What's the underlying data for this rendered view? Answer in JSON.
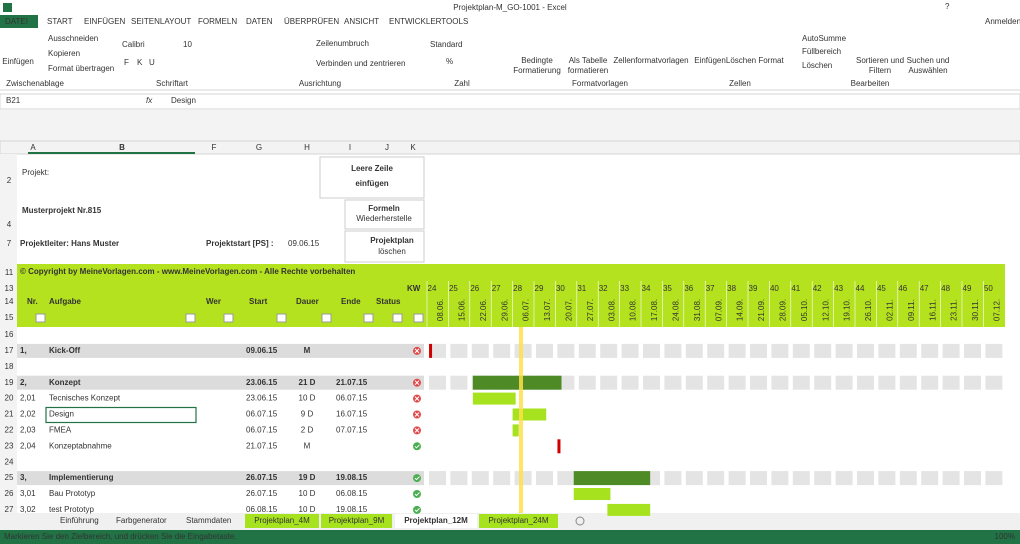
{
  "title_bar": {
    "title": "Projektplan-M_GO-1001 - Excel",
    "help": "?",
    "account": "Anmelden"
  },
  "tabs": [
    "DATEI",
    "START",
    "EINFÜGEN",
    "SEITENLAYOUT",
    "FORMELN",
    "DATEN",
    "ÜBERPRÜFEN",
    "ANSICHT",
    "ENTWICKLERTOOLS"
  ],
  "ribbon": {
    "items": [
      "Einfügen",
      "Ausschneiden",
      "Kopieren",
      "Format übertragen",
      "Calibri",
      "10",
      "F",
      "K",
      "U",
      "Zeilenumbruch",
      "Verbinden und zentrieren",
      "Standard",
      "%",
      "Bedingte",
      "Formatierung",
      "Als Tabelle",
      "formatieren",
      "Zellenformatvorlagen",
      "Einfügen",
      "Löschen",
      "Format",
      "AutoSumme",
      "Füllbereich",
      "Löschen",
      "Sortieren und",
      "Filtern",
      "Suchen und",
      "Auswählen"
    ],
    "groups": [
      "Zwischenablage",
      "Schriftart",
      "Ausrichtung",
      "Zahl",
      "Formatvorlagen",
      "Zellen",
      "Bearbeiten"
    ]
  },
  "formula_bar": {
    "cell": "B21",
    "fx": "fx",
    "content": "Design"
  },
  "columns": [
    "A",
    "B",
    "F",
    "G",
    "H",
    "I",
    "J",
    "K"
  ],
  "row_numbers": [
    2,
    4,
    7,
    11,
    13,
    14,
    15,
    16,
    17,
    18,
    19,
    20,
    21,
    22,
    23,
    24,
    25,
    26,
    27
  ],
  "project": {
    "label": "Projekt:",
    "name": "Musterprojekt Nr.815",
    "leader": "Projektleiter: Hans Muster",
    "start_label": "Projektstart [PS] :",
    "start": "09.06.15"
  },
  "buttons": [
    [
      "Leere Zeile",
      "einfügen"
    ],
    [
      "Formeln",
      "Wiederherstelle"
    ],
    [
      "Projektplan",
      "löschen"
    ]
  ],
  "copyright": "© Copyright by MeineVorlagen.com - www.MeineVorlagen.com - Alle Rechte vorbehalten",
  "table_header": {
    "nr": "Nr.",
    "task": "Aufgabe",
    "who": "Wer",
    "start": "Start",
    "duration": "Dauer",
    "end": "Ende",
    "status": "Status",
    "kw": "KW"
  },
  "gantt": {
    "weeks": [
      24,
      25,
      26,
      27,
      28,
      29,
      30,
      31,
      32,
      33,
      34,
      35,
      36,
      37,
      38,
      39,
      40,
      41,
      42,
      43,
      44,
      45,
      46,
      47,
      48,
      49,
      50
    ],
    "week_starts": [
      "08.06.",
      "15.06.",
      "22.06.",
      "29.06.",
      "06.07.",
      "13.07.",
      "20.07.",
      "27.07.",
      "03.08.",
      "10.08.",
      "17.08.",
      "24.08.",
      "31.08.",
      "07.09.",
      "14.09.",
      "21.09.",
      "28.09.",
      "05.10.",
      "12.10.",
      "19.10.",
      "26.10.",
      "02.11.",
      "09.11.",
      "16.11.",
      "23.11.",
      "30.11.",
      "07.12."
    ]
  },
  "tasks": [
    {
      "nr": "1,",
      "name": "Kick-Off",
      "start": "09.06.15",
      "duration": "M"
    },
    {
      "nr": "2,",
      "name": "Konzept",
      "start": "23.06.15",
      "duration": "21 D",
      "end": "21.07.15"
    },
    {
      "nr": "2,01",
      "name": "Tecnisches Konzept",
      "start": "23.06.15",
      "duration": "10 D",
      "end": "06.07.15"
    },
    {
      "nr": "2,02",
      "name": "Design",
      "start": "06.07.15",
      "duration": "9 D",
      "end": "16.07.15"
    },
    {
      "nr": "2,03",
      "name": "FMEA",
      "start": "06.07.15",
      "duration": "2 D",
      "end": "07.07.15"
    },
    {
      "nr": "2,04",
      "name": "Konzeptabnahme",
      "start": "21.07.15",
      "duration": "M"
    },
    {
      "nr": "3,",
      "name": "Implementierung",
      "start": "26.07.15",
      "duration": "19 D",
      "end": "19.08.15"
    },
    {
      "nr": "3,01",
      "name": "Bau Prototyp",
      "start": "26.07.15",
      "duration": "10 D",
      "end": "06.08.15"
    },
    {
      "nr": "3,02",
      "name": "test Prototyp",
      "start": "06.08.15",
      "duration": "10 D",
      "end": "19.08.15"
    }
  ],
  "sheet_tabs": [
    "Einführung",
    "Farbgenerator",
    "Stammdaten",
    "Projektplan_4M",
    "Projektplan_9M",
    "Projektplan_12M",
    "Projektplan_24M"
  ],
  "status_bar": {
    "message": "Markieren Sie den Zielbereich, und drücken Sie die Eingabetaste.",
    "zoom": "100%"
  }
}
